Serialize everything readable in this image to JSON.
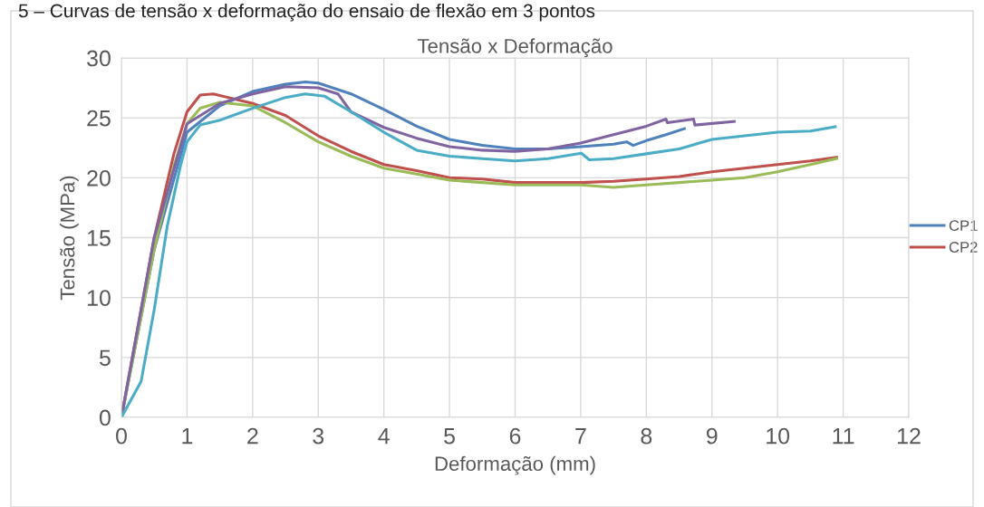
{
  "chart_data": {
    "type": "line",
    "title": "Tensão x Deformação",
    "xlabel": "Deformação (mm)",
    "ylabel": "Tensão (MPa)",
    "annotations": [
      "5 – Curvas de tensão x deformação do ensaio de flexão em 3 pontos"
    ],
    "xlim": [
      0,
      12
    ],
    "xticks": [
      0,
      1,
      2,
      3,
      4,
      5,
      6,
      7,
      8,
      9,
      10,
      11,
      12
    ],
    "ylim": [
      0,
      30
    ],
    "yticks": [
      0,
      5,
      10,
      15,
      20,
      25,
      30
    ],
    "grid": true,
    "legend": "right",
    "marker": "none",
    "line_style": "solid",
    "series": [
      {
        "name": "CP1",
        "color": "#4f81bd",
        "x": [
          0,
          0.5,
          1,
          1.5,
          2,
          2.5,
          2.8,
          3,
          3.5,
          4,
          4.5,
          5,
          5.5,
          6,
          6.5,
          7,
          7.5,
          7.7,
          7.8,
          8,
          8.3,
          8.58
        ],
        "values": [
          0,
          14,
          23.8,
          26,
          27.2,
          27.8,
          28,
          27.9,
          27,
          25.7,
          24.3,
          23.2,
          22.7,
          22.4,
          22.4,
          22.6,
          22.8,
          23,
          22.7,
          23.1,
          23.6,
          24.1
        ]
      },
      {
        "name": "CP2",
        "color": "#c0504d",
        "x": [
          0,
          0.5,
          0.8,
          1,
          1.2,
          1.4,
          1.7,
          2,
          2.5,
          3,
          3.5,
          4,
          4.5,
          5,
          5.5,
          6,
          6.5,
          7,
          7.5,
          8,
          8.5,
          9,
          9.5,
          10,
          10.5,
          10.9
        ],
        "values": [
          0,
          15,
          22,
          25.5,
          26.9,
          27,
          26.6,
          26.2,
          25.2,
          23.5,
          22.2,
          21.1,
          20.6,
          20,
          19.9,
          19.6,
          19.6,
          19.6,
          19.7,
          19.9,
          20.1,
          20.5,
          20.8,
          21.1,
          21.4,
          21.7
        ]
      },
      {
        "color": "#9bbb59",
        "x": [
          0,
          0.5,
          0.8,
          1,
          1.2,
          1.5,
          2,
          2.5,
          3,
          3.5,
          4,
          4.5,
          5,
          5.5,
          6,
          6.5,
          7,
          7.5,
          8,
          8.5,
          9,
          9.5,
          10,
          10.5,
          10.9
        ],
        "values": [
          0,
          14,
          21,
          24.5,
          25.8,
          26.3,
          26,
          24.6,
          23,
          21.8,
          20.8,
          20.3,
          19.8,
          19.6,
          19.4,
          19.4,
          19.4,
          19.2,
          19.4,
          19.6,
          19.8,
          20,
          20.5,
          21.1,
          21.6
        ]
      },
      {
        "color": "#8064a2",
        "x": [
          0,
          0.5,
          1,
          1.5,
          2,
          2.5,
          3,
          3.3,
          3.5,
          4,
          4.5,
          5,
          5.5,
          6,
          6.5,
          7,
          7.5,
          8,
          8.3,
          8.32,
          8.72,
          8.74,
          9.34
        ],
        "values": [
          0,
          15,
          24.5,
          26.2,
          27,
          27.6,
          27.5,
          27,
          25.5,
          24.2,
          23.3,
          22.6,
          22.3,
          22.2,
          22.4,
          22.9,
          23.6,
          24.3,
          24.9,
          24.6,
          24.9,
          24.4,
          24.7
        ]
      },
      {
        "color": "#4bacc6",
        "x": [
          0,
          0.3,
          0.5,
          0.7,
          0.9,
          1,
          1.2,
          1.5,
          2,
          2.5,
          2.8,
          3.1,
          3.5,
          4,
          4.5,
          5,
          5.5,
          6,
          6.5,
          7.01,
          7.13,
          7.5,
          8,
          8.5,
          9,
          9.5,
          10,
          10.5,
          10.88
        ],
        "values": [
          0,
          3,
          9,
          16,
          21,
          23,
          24.4,
          24.8,
          25.8,
          26.7,
          27,
          26.8,
          25.5,
          23.8,
          22.3,
          21.8,
          21.6,
          21.4,
          21.6,
          22.05,
          21.5,
          21.6,
          22,
          22.4,
          23.2,
          23.5,
          23.8,
          23.9,
          24.26
        ]
      }
    ]
  }
}
